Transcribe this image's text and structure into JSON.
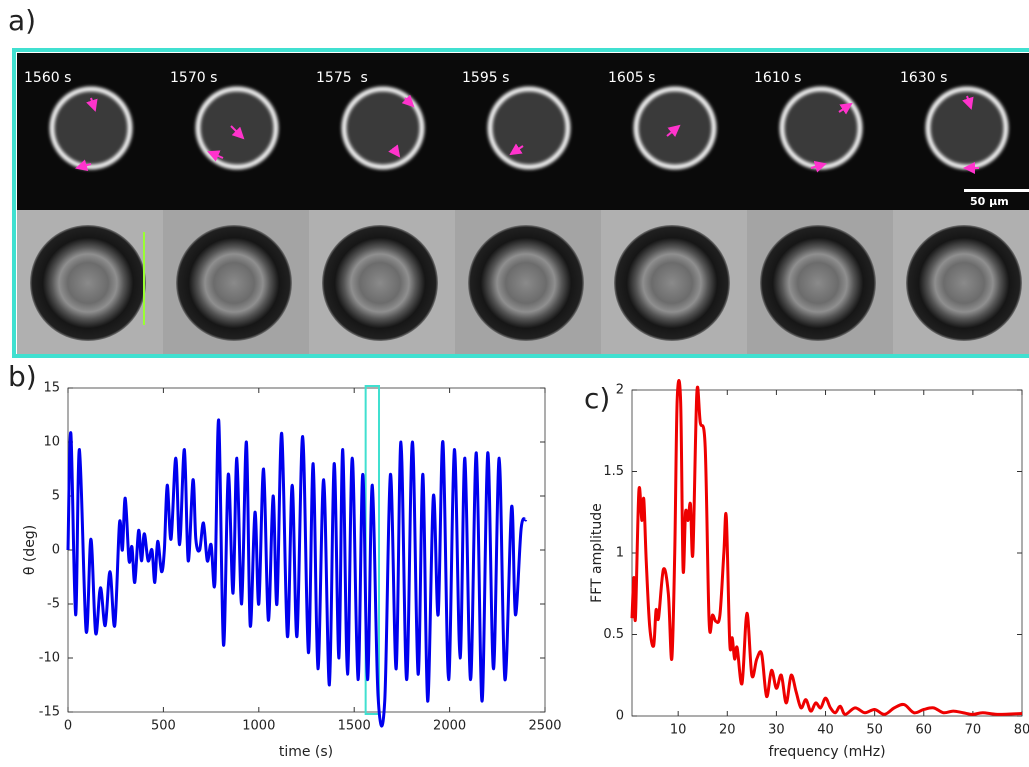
{
  "panel_a": {
    "label": "a)",
    "frames": [
      "1560 s",
      "1570 s",
      "1575  s",
      "1595 s",
      "1605 s",
      "1610 s",
      "1630 s"
    ],
    "scale_bar": "50 µm"
  },
  "chart_data": [
    {
      "type": "line",
      "panel_label": "b)",
      "xlabel": "time (s)",
      "ylabel": "θ (deg)",
      "xlim": [
        0,
        2500
      ],
      "ylim": [
        -15,
        15
      ],
      "xticks": [
        0,
        500,
        1000,
        1500,
        2000,
        2500
      ],
      "yticks": [
        -15,
        -10,
        -5,
        0,
        5,
        10,
        15
      ],
      "highlight": [
        1560,
        1630
      ],
      "highlight_color": "#40e0d0",
      "series": [
        {
          "color": "#0000ee",
          "x": [
            0,
            15,
            40,
            60,
            95,
            120,
            145,
            170,
            195,
            220,
            245,
            270,
            285,
            300,
            320,
            335,
            350,
            370,
            385,
            400,
            420,
            440,
            455,
            470,
            490,
            505,
            520,
            540,
            565,
            585,
            610,
            630,
            655,
            670,
            690,
            710,
            730,
            750,
            770,
            790,
            815,
            840,
            865,
            885,
            910,
            935,
            955,
            980,
            1000,
            1025,
            1050,
            1075,
            1095,
            1120,
            1150,
            1175,
            1200,
            1230,
            1260,
            1285,
            1310,
            1340,
            1370,
            1395,
            1420,
            1440,
            1465,
            1490,
            1520,
            1545,
            1570,
            1595,
            1625,
            1660,
            1690,
            1720,
            1745,
            1775,
            1805,
            1835,
            1860,
            1885,
            1915,
            1940,
            1965,
            1995,
            2025,
            2055,
            2080,
            2110,
            2140,
            2170,
            2200,
            2230,
            2260,
            2290,
            2325,
            2345,
            2375,
            2400
          ],
          "values": [
            0,
            10.8,
            -6,
            9.3,
            -7.5,
            1,
            -7.7,
            -3.5,
            -7,
            -2,
            -7,
            2.5,
            0,
            4.8,
            -1,
            0.3,
            -3,
            1.8,
            -1,
            1.5,
            -1,
            0,
            -3,
            0.8,
            -2,
            0,
            6,
            1,
            8.5,
            0.5,
            9.3,
            -1,
            6.5,
            1,
            0,
            2.5,
            -1,
            0.5,
            -3,
            12,
            -8.8,
            7,
            -4,
            8.5,
            -5,
            10,
            -7,
            3.5,
            -5,
            7.5,
            -6.5,
            5,
            -5,
            10.8,
            -8,
            6,
            -8,
            10.5,
            -9.5,
            8,
            -11,
            6.5,
            -12.5,
            8,
            -10,
            9.3,
            -11.5,
            8.5,
            -12,
            7,
            -12,
            6,
            -13.5,
            -14,
            7,
            -11,
            10,
            -12,
            10,
            -11.5,
            7,
            -14,
            5,
            -6,
            10,
            -12,
            9.3,
            -10,
            8.5,
            -12,
            9,
            -14,
            9,
            -11,
            8.5,
            -12,
            4,
            -6,
            2,
            2.8
          ]
        }
      ]
    },
    {
      "type": "line",
      "panel_label": "c)",
      "xlabel": "frequency (mHz)",
      "ylabel": "FFT amplitude",
      "xlim": [
        0.6,
        80
      ],
      "ylim": [
        0,
        2
      ],
      "xticks": [
        10,
        20,
        30,
        40,
        50,
        60,
        70,
        80
      ],
      "yticks": [
        0,
        0.5,
        1,
        1.5,
        2
      ],
      "series": [
        {
          "color": "#ee0000",
          "x": [
            0.6,
            1,
            1.3,
            2,
            2.6,
            3,
            3.5,
            4.2,
            5,
            5.5,
            6,
            7,
            8,
            8.7,
            9.3,
            9.8,
            10.5,
            11,
            11.5,
            12,
            12.5,
            13,
            13.8,
            14.5,
            15.5,
            16.3,
            17,
            17.7,
            18.5,
            19.3,
            19.8,
            20.5,
            21,
            21.5,
            22,
            23,
            24,
            25,
            26,
            27,
            28,
            29,
            30,
            31,
            32,
            33,
            34,
            35,
            36,
            37,
            38,
            39,
            40,
            41,
            42,
            43,
            44,
            46,
            48,
            50,
            52,
            54,
            56,
            58,
            60,
            62,
            64,
            66,
            68,
            70,
            72,
            75,
            80
          ],
          "values": [
            0.6,
            0.85,
            0.6,
            1.38,
            1.2,
            1.33,
            0.95,
            0.55,
            0.43,
            0.65,
            0.6,
            0.9,
            0.75,
            0.35,
            1.0,
            1.94,
            1.93,
            0.9,
            1.25,
            1.2,
            1.3,
            1.0,
            1.98,
            1.8,
            1.65,
            0.58,
            0.62,
            0.58,
            0.62,
            1.0,
            1.22,
            0.45,
            0.48,
            0.35,
            0.42,
            0.2,
            0.63,
            0.25,
            0.35,
            0.38,
            0.12,
            0.28,
            0.17,
            0.25,
            0.08,
            0.25,
            0.15,
            0.05,
            0.1,
            0.03,
            0.08,
            0.05,
            0.11,
            0.05,
            0.02,
            0.06,
            0.01,
            0.05,
            0.02,
            0.04,
            0.01,
            0.05,
            0.07,
            0.02,
            0.04,
            0.05,
            0.02,
            0.03,
            0.02,
            0.01,
            0.02,
            0.01,
            0.015
          ]
        }
      ]
    }
  ]
}
